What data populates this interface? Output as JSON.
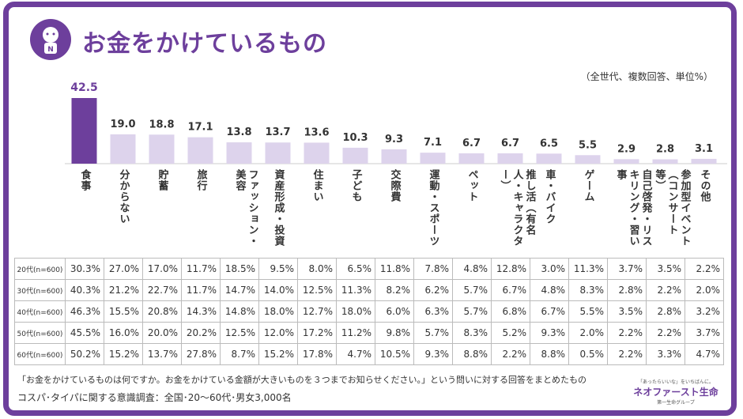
{
  "header": {
    "title": "お金をかけているもの",
    "note": "（全世代、複数回答、単位%）",
    "logo_letter": "N"
  },
  "chart_data": {
    "type": "bar",
    "title": "お金をかけているもの",
    "categories": [
      "食事",
      "分からない",
      "貯蓄",
      "旅行",
      "ファッション・美容",
      "資産形成・投資",
      "住まい",
      "子ども",
      "交際費",
      "運動・スポーツ",
      "ペット",
      "推し活（有名人・キャラクター）",
      "車・バイク",
      "ゲーム",
      "自己啓発・リスキリング・習い事",
      "参加型イベント（コンサート等）",
      "その他"
    ],
    "values": [
      42.5,
      19.0,
      18.8,
      17.1,
      13.8,
      13.7,
      13.6,
      10.3,
      9.3,
      7.1,
      6.7,
      6.7,
      6.5,
      5.5,
      2.9,
      2.8,
      3.1
    ],
    "value_labels": [
      "42.5",
      "19.0",
      "18.8",
      "17.1",
      "13.8",
      "13.7",
      "13.6",
      "10.3",
      "9.3",
      "7.1",
      "6.7",
      "6.7",
      "6.5",
      "5.5",
      "2.9",
      "2.8",
      "3.1"
    ],
    "ylim": [
      0,
      45
    ],
    "highlight_color": "#6d3f9c",
    "bar_color": "#ddd3ec"
  },
  "table": {
    "rows": [
      {
        "label": "20代(n=600)",
        "cells": [
          "30.3%",
          "27.0%",
          "17.0%",
          "11.7%",
          "18.5%",
          "9.5%",
          "8.0%",
          "6.5%",
          "11.8%",
          "7.8%",
          "4.8%",
          "12.8%",
          "3.0%",
          "11.3%",
          "3.7%",
          "3.5%",
          "2.2%"
        ]
      },
      {
        "label": "30代(n=600)",
        "cells": [
          "40.3%",
          "21.2%",
          "22.7%",
          "11.7%",
          "14.7%",
          "14.0%",
          "12.5%",
          "11.3%",
          "8.2%",
          "6.2%",
          "5.7%",
          "6.7%",
          "4.8%",
          "8.3%",
          "2.8%",
          "2.2%",
          "2.0%"
        ]
      },
      {
        "label": "40代(n=600)",
        "cells": [
          "46.3%",
          "15.5%",
          "20.8%",
          "14.3%",
          "14.8%",
          "18.0%",
          "12.7%",
          "18.0%",
          "6.0%",
          "6.3%",
          "5.7%",
          "6.8%",
          "6.7%",
          "5.5%",
          "3.5%",
          "2.8%",
          "3.2%"
        ]
      },
      {
        "label": "50代(n=600)",
        "cells": [
          "45.5%",
          "16.0%",
          "20.0%",
          "20.2%",
          "12.5%",
          "12.0%",
          "17.2%",
          "11.2%",
          "9.8%",
          "5.7%",
          "8.3%",
          "5.2%",
          "9.3%",
          "2.0%",
          "2.2%",
          "2.2%",
          "3.7%"
        ]
      },
      {
        "label": "60代(n=600)",
        "cells": [
          "50.2%",
          "15.2%",
          "13.7%",
          "27.8%",
          "8.7%",
          "15.2%",
          "17.8%",
          "4.7%",
          "10.5%",
          "9.3%",
          "8.8%",
          "2.2%",
          "8.8%",
          "0.5%",
          "2.2%",
          "3.3%",
          "4.7%"
        ]
      }
    ]
  },
  "footer": {
    "question": "「お金をかけているものは何ですか。お金をかけている金額が大きいものを３つまでお知らせください。」という問いに対する回答をまとめたもの",
    "source": "コスパ･タイパに関する意識調査：全国･20～60代･男女3,000名"
  },
  "brand": {
    "tagline": "「あったらいいな」をいちばんに。",
    "name": "ネオファースト生命",
    "sub": "第一生命グループ"
  }
}
